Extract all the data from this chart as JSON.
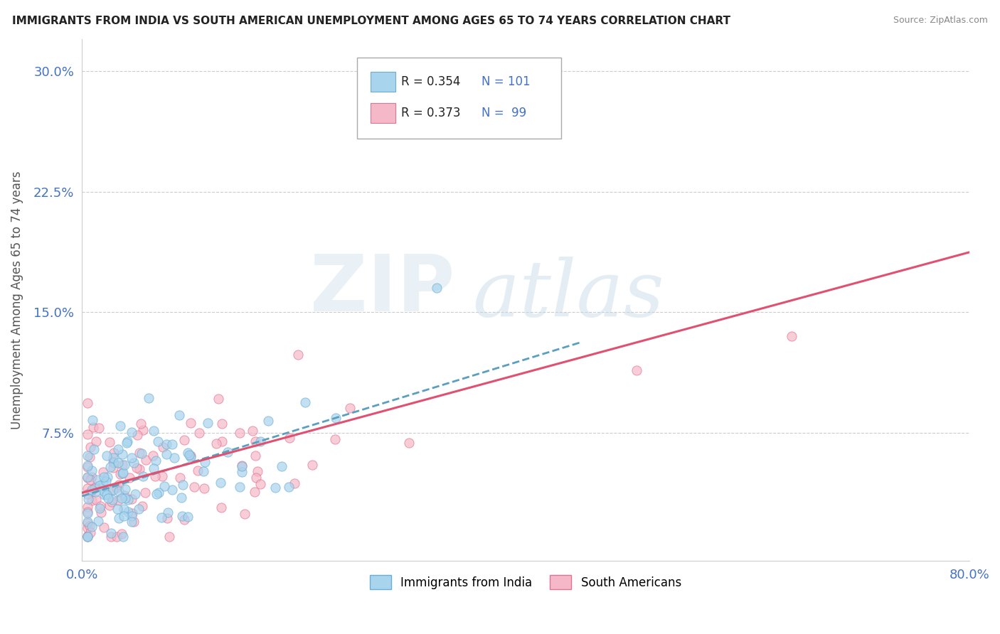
{
  "title": "IMMIGRANTS FROM INDIA VS SOUTH AMERICAN UNEMPLOYMENT AMONG AGES 65 TO 74 YEARS CORRELATION CHART",
  "source": "Source: ZipAtlas.com",
  "ylabel": "Unemployment Among Ages 65 to 74 years",
  "xlim": [
    0.0,
    0.8
  ],
  "ylim": [
    -0.005,
    0.32
  ],
  "ytick_vals": [
    0.075,
    0.15,
    0.225,
    0.3
  ],
  "ytick_labels": [
    "7.5%",
    "15.0%",
    "22.5%",
    "30.0%"
  ],
  "xtick_vals": [
    0.0,
    0.8
  ],
  "xtick_labels": [
    "0.0%",
    "80.0%"
  ],
  "legend_r1": "R = 0.354",
  "legend_n1": "N = 101",
  "legend_r2": "R = 0.373",
  "legend_n2": "N =  99",
  "color_india": "#a8d4ed",
  "color_india_edge": "#6aaed6",
  "color_india_line": "#5b9fc0",
  "color_sa": "#f5b8c8",
  "color_sa_edge": "#e87090",
  "color_sa_line": "#e05070",
  "color_grid": "#cccccc",
  "color_tick": "#4472c4",
  "watermark_zip": "ZIP",
  "watermark_atlas": "atlas"
}
